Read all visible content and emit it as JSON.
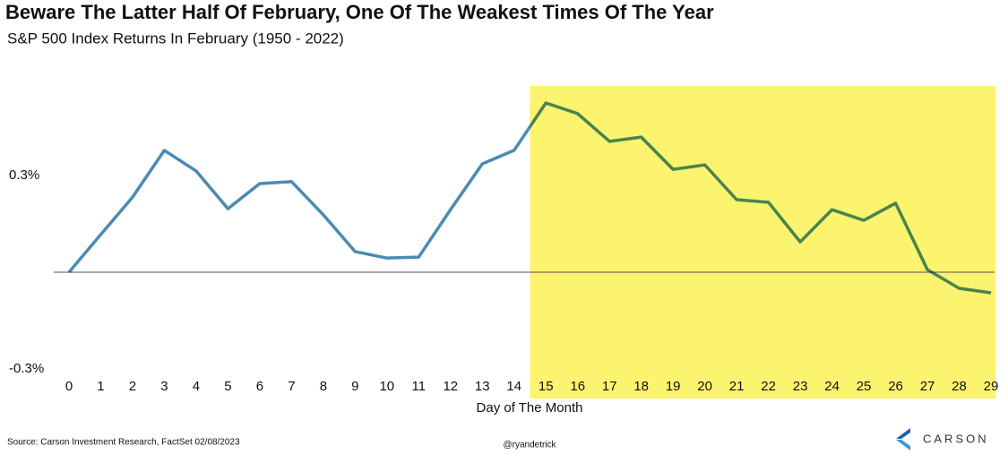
{
  "chart_data": {
    "type": "line",
    "title": "Beware The Latter Half Of February, One Of The Weakest Times Of The Year",
    "subtitle": "S&P 500 Index Returns In February (1950 - 2022)",
    "x_label": "Day of The Month",
    "source": "Source: Carson Investment Research, FactSet 02/08/2023",
    "handle": "@ryandetrick",
    "logo": "CARSON",
    "x": [
      0,
      1,
      2,
      3,
      4,
      5,
      6,
      7,
      8,
      9,
      10,
      11,
      12,
      13,
      14,
      15,
      16,
      17,
      18,
      19,
      20,
      21,
      22,
      23,
      24,
      25,
      26,
      27,
      28,
      29
    ],
    "xlim": [
      0,
      29
    ],
    "series": [
      {
        "color": "#4a8bb5",
        "values": [
          0,
          0.117,
          0.233,
          0.378,
          0.314,
          0.197,
          0.275,
          0.281,
          0.178,
          0.064,
          0.044,
          0.047,
          0.194,
          0.336,
          0.378,
          0.525,
          0.492,
          0.406,
          0.419,
          0.319,
          0.333,
          0.225,
          0.217,
          0.094,
          0.194,
          0.161,
          0.214,
          0.008,
          -0.05,
          -0.064
        ]
      }
    ],
    "ylim": [
      -0.3,
      0.55
    ],
    "yticks": [
      {
        "value": 0.3,
        "label": "0.3%"
      },
      {
        "value": -0.3,
        "label": "-0.3%"
      }
    ],
    "highlight": {
      "x_start": 15,
      "x_end": 29,
      "color": "#fcf36f"
    }
  }
}
